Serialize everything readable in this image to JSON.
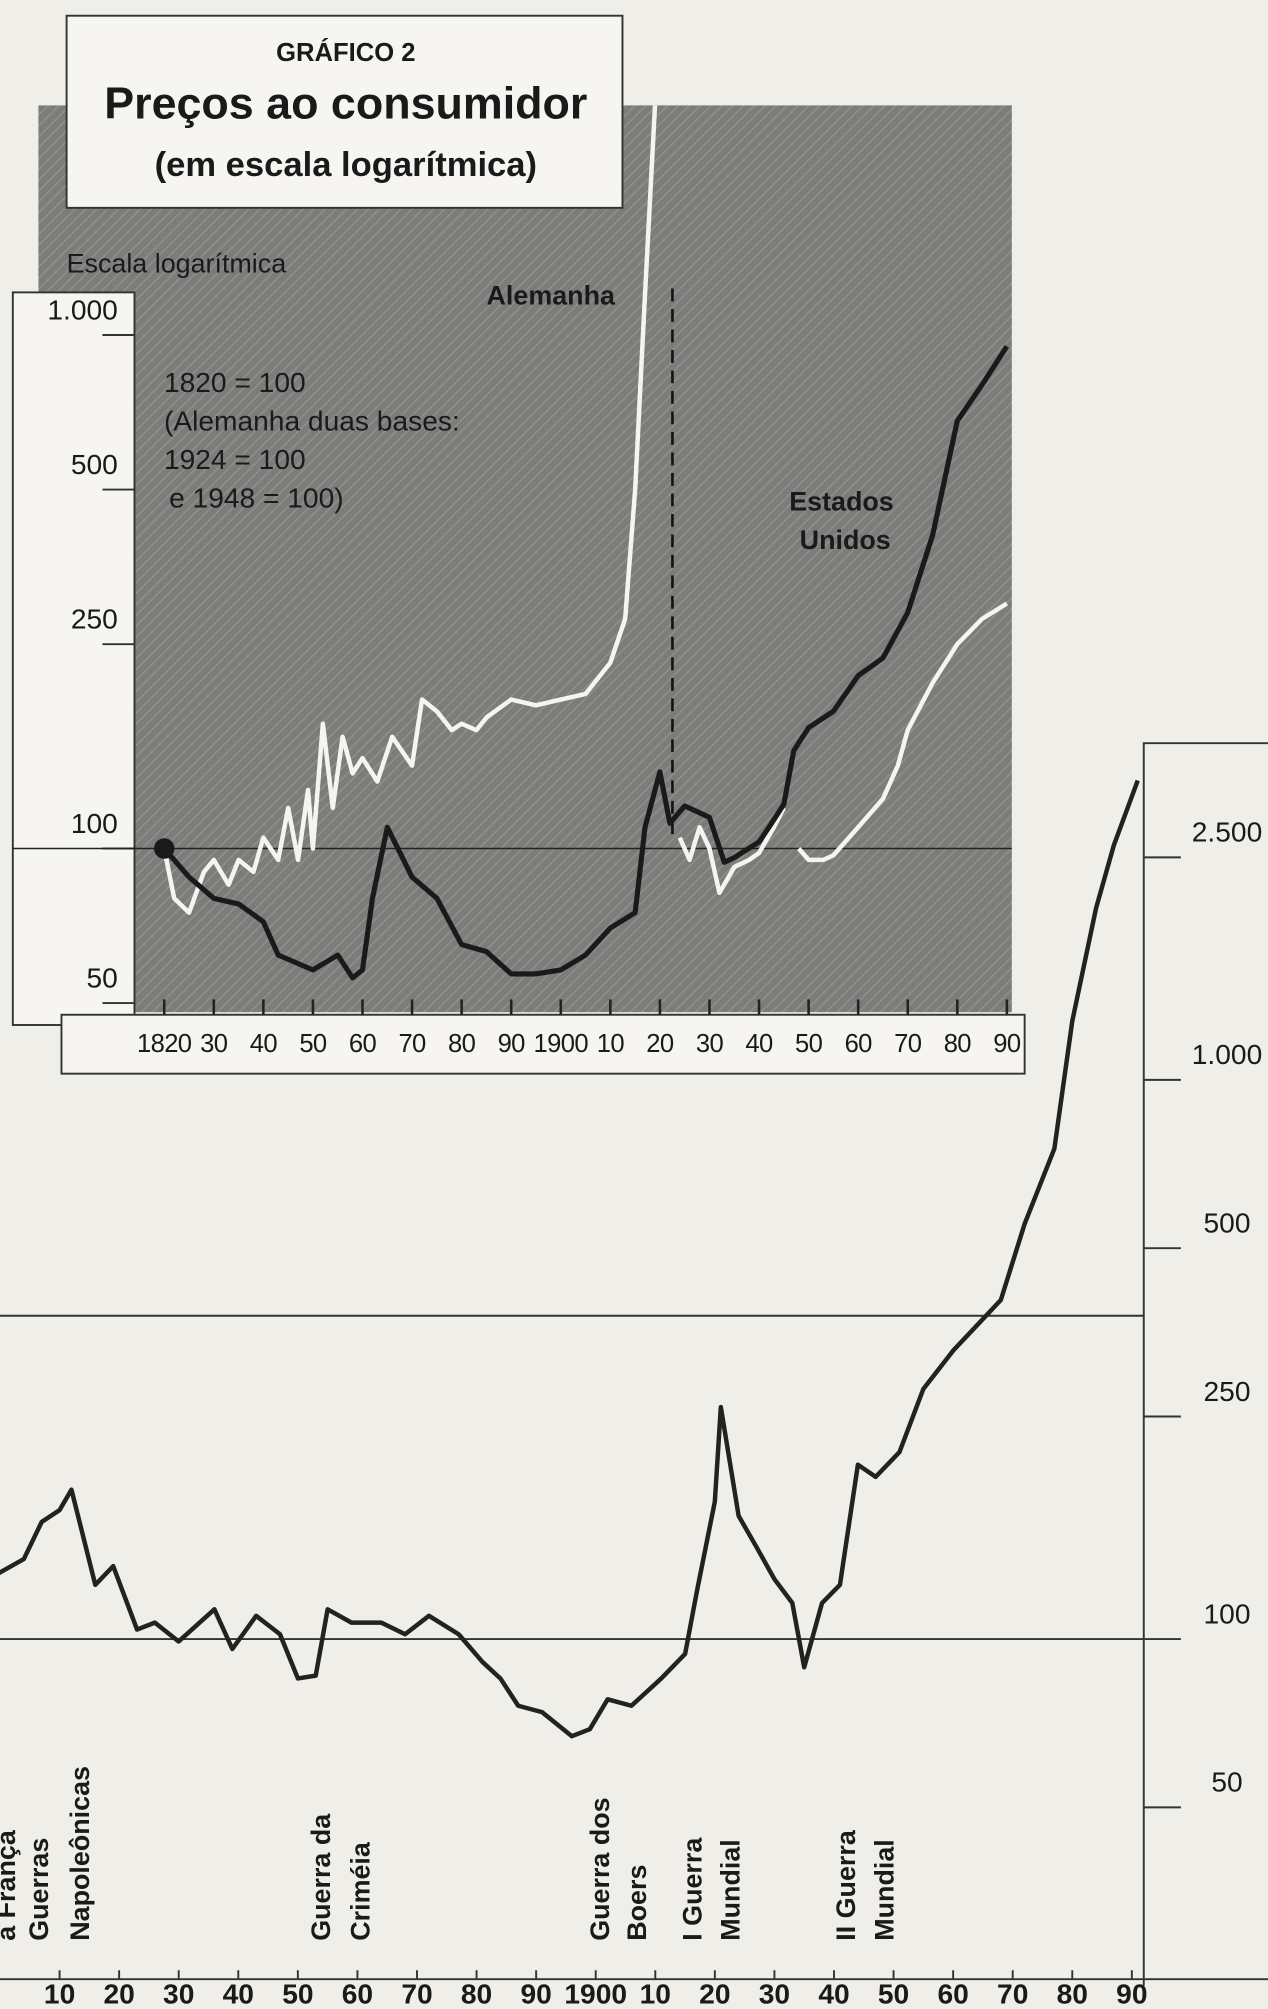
{
  "chart_data": [
    {
      "type": "line",
      "figure_label": "GRÁFICO 2",
      "title": "Preços ao consumidor",
      "subtitle": "(em escala logarítmica)",
      "y_label": "Escala logarítmica",
      "note": [
        "1820 = 100",
        "(Alemanha duas bases:",
        "1924 = 100",
        "e 1948 = 100)"
      ],
      "log_scale": true,
      "xlim": [
        1814,
        1991
      ],
      "ylim": [
        48,
        2800
      ],
      "yticks": [
        50,
        100,
        250,
        500,
        {
          "value": 1000,
          "label": "1.000"
        }
      ],
      "xticks": [
        1820,
        {
          "value": 1830,
          "label": "30"
        },
        {
          "value": 1840,
          "label": "40"
        },
        {
          "value": 1850,
          "label": "50"
        },
        {
          "value": 1860,
          "label": "60"
        },
        {
          "value": 1870,
          "label": "70"
        },
        {
          "value": 1880,
          "label": "80"
        },
        {
          "value": 1890,
          "label": "90"
        },
        1900,
        {
          "value": 1910,
          "label": "10"
        },
        {
          "value": 1920,
          "label": "20"
        },
        {
          "value": 1930,
          "label": "30"
        },
        {
          "value": 1940,
          "label": "40"
        },
        {
          "value": 1950,
          "label": "50"
        },
        {
          "value": 1960,
          "label": "60"
        },
        {
          "value": 1970,
          "label": "70"
        },
        {
          "value": 1980,
          "label": "80"
        },
        {
          "value": 1990,
          "label": "90"
        }
      ],
      "series": [
        {
          "name": "Alemanha",
          "color": "#f4f4f0",
          "x": [
            1820,
            1822,
            1825,
            1828,
            1830,
            1833,
            1835,
            1838,
            1840,
            1843,
            1845,
            1847,
            1849,
            1850,
            1852,
            1854,
            1856,
            1858,
            1860,
            1863,
            1866,
            1870,
            1872,
            1875,
            1878,
            1880,
            1883,
            1885,
            1890,
            1895,
            1900,
            1905,
            1910,
            1913,
            1915,
            1917,
            1919,
            1921,
            1924,
            1926,
            1928,
            1930,
            1932,
            1935,
            1938,
            1940,
            1943,
            1945,
            1946,
            1948,
            1950,
            1953,
            1955,
            1960,
            1965,
            1968,
            1970,
            1975,
            1980,
            1985,
            1990
          ],
          "values": [
            100,
            80,
            75,
            90,
            95,
            85,
            95,
            90,
            105,
            95,
            120,
            95,
            130,
            100,
            175,
            120,
            165,
            140,
            150,
            135,
            165,
            145,
            195,
            185,
            170,
            175,
            170,
            180,
            195,
            190,
            195,
            200,
            230,
            280,
            500,
            1200,
            2800,
            null,
            105,
            95,
            110,
            100,
            82,
            92,
            95,
            98,
            110,
            120,
            null,
            100,
            95,
            95,
            97,
            110,
            125,
            145,
            170,
            210,
            250,
            280,
            300
          ]
        },
        {
          "name": "Estados Unidos",
          "color": "#1a1a1a",
          "x": [
            1820,
            1825,
            1830,
            1835,
            1840,
            1843,
            1850,
            1855,
            1858,
            1860,
            1862,
            1865,
            1870,
            1875,
            1880,
            1885,
            1890,
            1895,
            1900,
            1905,
            1910,
            1915,
            1917,
            1920,
            1922,
            1925,
            1930,
            1933,
            1935,
            1940,
            1942,
            1945,
            1947,
            1950,
            1955,
            1960,
            1965,
            1970,
            1975,
            1980,
            1985,
            1990
          ],
          "values": [
            100,
            88,
            80,
            78,
            72,
            62,
            58,
            62,
            56,
            58,
            80,
            110,
            88,
            80,
            65,
            63,
            57,
            57,
            58,
            62,
            70,
            75,
            110,
            141,
            112,
            121,
            115,
            94,
            96,
            103,
            110,
            122,
            155,
            172,
            185,
            217,
            235,
            288,
            407,
            680,
            800,
            950
          ]
        }
      ]
    },
    {
      "type": "line",
      "log_scale": true,
      "yaxis_side": "right",
      "xlim": [
        1800,
        1992
      ],
      "ylim": [
        24,
        4000
      ],
      "yticks": [
        50,
        100,
        250,
        500,
        {
          "value": 1000,
          "label": "1.000"
        },
        {
          "value": 2500,
          "label": "2.500"
        }
      ],
      "xticks": [
        {
          "value": 1810,
          "label": "10"
        },
        {
          "value": 1820,
          "label": "20"
        },
        {
          "value": 1830,
          "label": "30"
        },
        {
          "value": 1840,
          "label": "40"
        },
        {
          "value": 1850,
          "label": "50"
        },
        {
          "value": 1860,
          "label": "60"
        },
        {
          "value": 1870,
          "label": "70"
        },
        {
          "value": 1880,
          "label": "80"
        },
        {
          "value": 1890,
          "label": "90"
        },
        1900,
        {
          "value": 1910,
          "label": "10"
        },
        {
          "value": 1920,
          "label": "20"
        },
        {
          "value": 1930,
          "label": "30"
        },
        {
          "value": 1940,
          "label": "40"
        },
        {
          "value": 1950,
          "label": "50"
        },
        {
          "value": 1960,
          "label": "60"
        },
        {
          "value": 1970,
          "label": "70"
        },
        {
          "value": 1980,
          "label": "80"
        },
        {
          "value": 1990,
          "label": "90"
        }
      ],
      "series": [
        {
          "color": "#222222",
          "x": [
            1798,
            1804,
            1807,
            1810,
            1812,
            1816,
            1819,
            1823,
            1826,
            1830,
            1836,
            1839,
            1843,
            1847,
            1850,
            1853,
            1855,
            1859,
            1864,
            1868,
            1872,
            1877,
            1881,
            1884,
            1887,
            1891,
            1896,
            1899,
            1902,
            1906,
            1911,
            1915,
            1917,
            1920,
            1921,
            1924,
            1927,
            1930,
            1933,
            1935,
            1938,
            1941,
            1944,
            1947,
            1951,
            1955,
            1960,
            1964,
            1968,
            1972,
            1977,
            1980,
            1984,
            1987,
            1991
          ],
          "values": [
            128,
            139,
            162,
            170,
            185,
            125,
            135,
            104,
            107,
            99,
            113,
            96,
            110,
            102,
            85,
            86,
            113,
            107,
            107,
            102,
            110,
            102,
            91,
            85,
            76,
            74,
            67,
            69,
            78,
            76,
            85,
            94,
            122,
            176,
            260,
            166,
            146,
            128,
            116,
            89,
            116,
            125,
            205,
            195,
            216,
            280,
            328,
            364,
            404,
            553,
            753,
            1274,
            2030,
            2630,
            3430
          ]
        }
      ],
      "annotations": [
        [
          "a França"
        ],
        [
          "Guerras",
          "Napoleônicas"
        ],
        [
          "Guerra da",
          "Criméia"
        ],
        [
          "Guerra dos",
          "Boers"
        ],
        [
          "I Guerra",
          "Mundial"
        ],
        [
          "II Guerra",
          "Mundial"
        ]
      ]
    }
  ]
}
